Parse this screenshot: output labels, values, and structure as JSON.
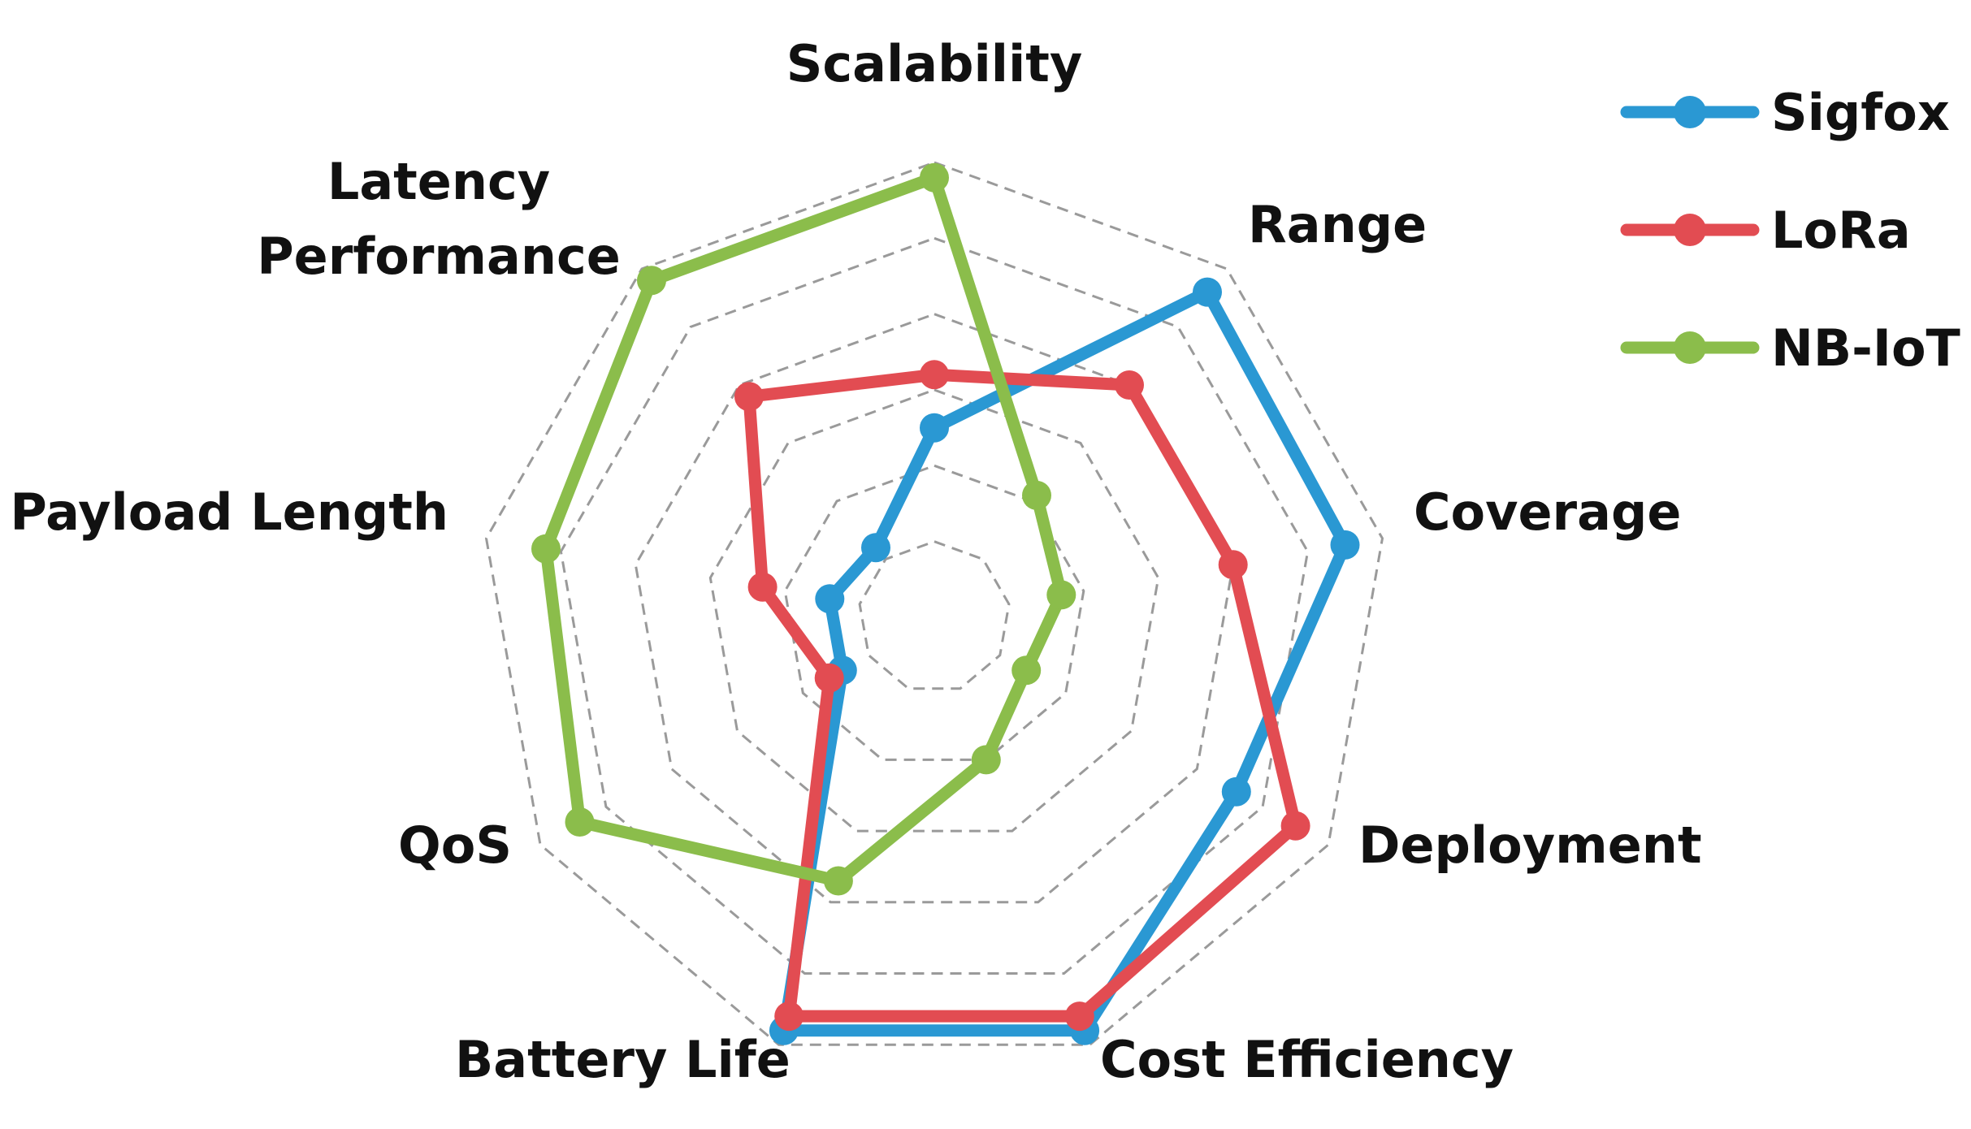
{
  "chart_data": {
    "type": "radar",
    "title": "",
    "axes": [
      "Scalability",
      "Range",
      "Coverage",
      "Deployment",
      "Cost Efficiency",
      "Battery Life",
      "QoS",
      "Payload Length",
      "Latency Performance"
    ],
    "axis_label_lines": [
      [
        "Scalability"
      ],
      [
        "Range"
      ],
      [
        "Coverage"
      ],
      [
        "Deployment"
      ],
      [
        "Cost Efficiency"
      ],
      [
        "Battery Life"
      ],
      [
        "QoS"
      ],
      [
        "Payload Length"
      ],
      [
        "Latency",
        "Performance"
      ]
    ],
    "range": [
      0,
      6
    ],
    "rings": 6,
    "grid": true,
    "legend_position": "top-right",
    "series": [
      {
        "name": "Sigfox",
        "color": "#2a98d3",
        "values": [
          2.5,
          5.6,
          5.5,
          4.6,
          5.8,
          5.8,
          1.4,
          1.4,
          1.2
        ]
      },
      {
        "name": "LoRa",
        "color": "#e24c52",
        "values": [
          3.2,
          4.0,
          4.0,
          5.5,
          5.6,
          5.6,
          1.6,
          2.3,
          3.8
        ]
      },
      {
        "name": "NB-IoT",
        "color": "#8bbd4b",
        "values": [
          5.8,
          2.1,
          1.7,
          1.4,
          2.0,
          3.7,
          5.4,
          5.2,
          5.8
        ]
      }
    ]
  }
}
